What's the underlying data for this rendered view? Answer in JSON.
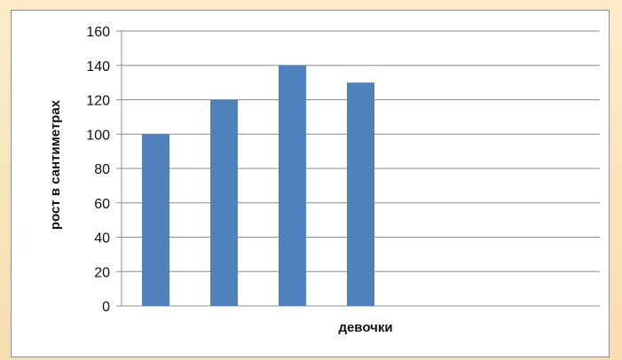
{
  "colors": {
    "background": "#fbe7bf",
    "panel": "#ffffff",
    "bar": "#4f81bd",
    "grid": "#8c8c8c"
  },
  "chart_data": {
    "type": "bar",
    "title": "",
    "xlabel": "девочки",
    "ylabel": "рост в сантиметрах",
    "ylim": [
      0,
      160
    ],
    "yticks": [
      0,
      20,
      40,
      60,
      80,
      100,
      120,
      140,
      160
    ],
    "categories": [
      "",
      "",
      "",
      "",
      "",
      "",
      ""
    ],
    "values": [
      100,
      120,
      140,
      130,
      null,
      null,
      null
    ],
    "grid": true,
    "legend": "none"
  }
}
